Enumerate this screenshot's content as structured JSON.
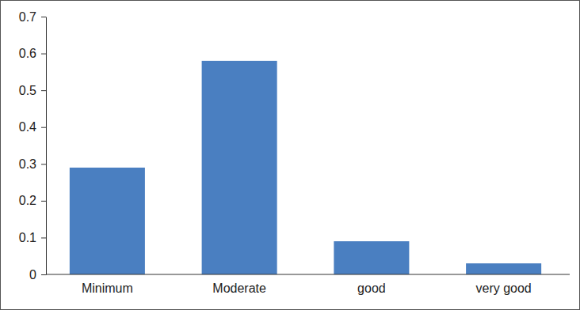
{
  "chart_data": {
    "type": "bar",
    "categories": [
      "Minimum",
      "Moderate",
      "good",
      "very good"
    ],
    "values": [
      0.29,
      0.58,
      0.09,
      0.03
    ],
    "color": "#4a7fc1",
    "ylim": [
      0,
      0.7
    ],
    "yticks": [
      0,
      0.1,
      0.2,
      0.3,
      0.4,
      0.5,
      0.6,
      0.7
    ],
    "grid": false
  }
}
